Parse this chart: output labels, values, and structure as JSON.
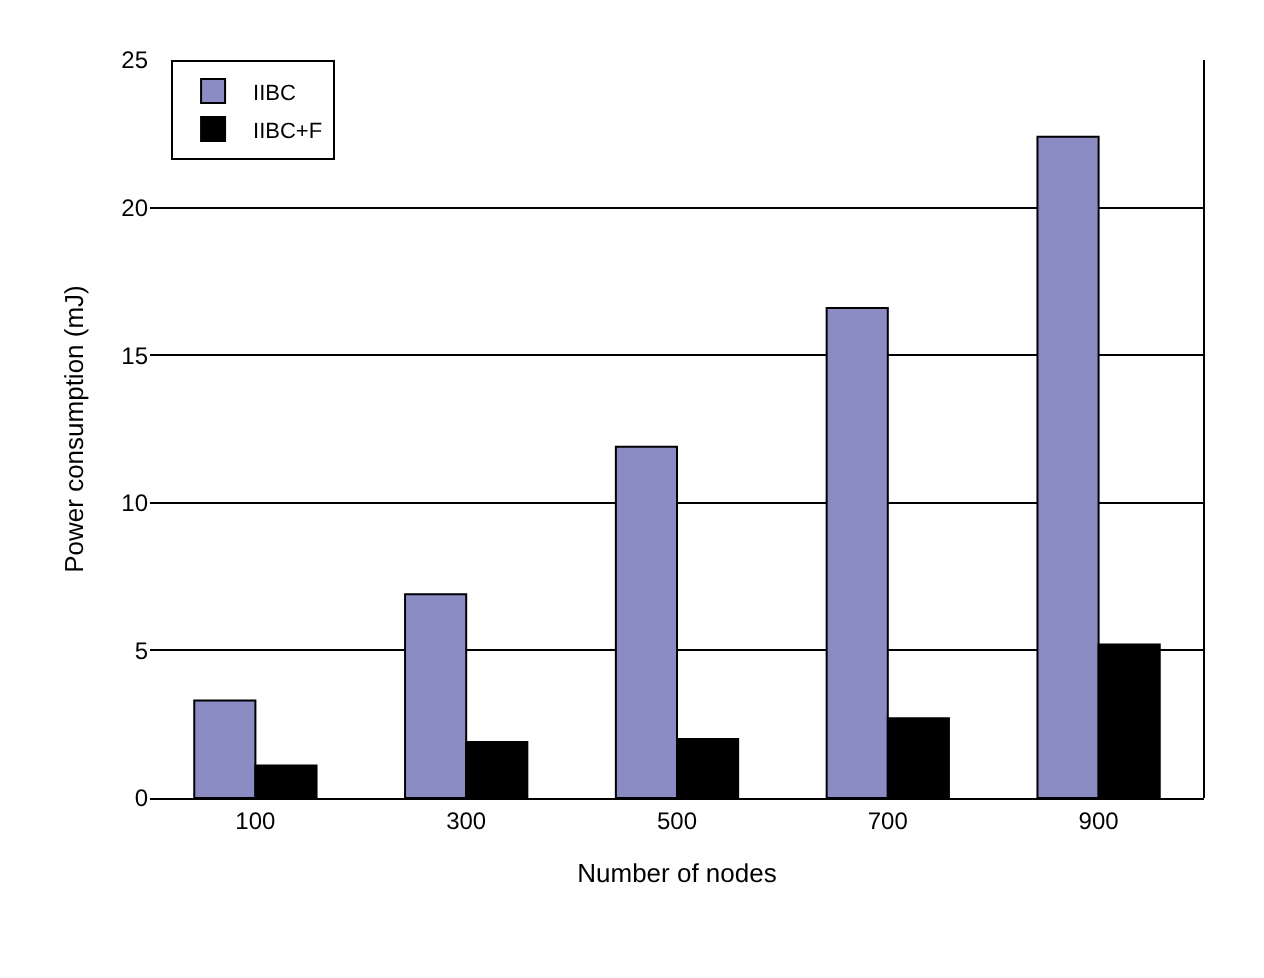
{
  "chart_data": {
    "type": "bar",
    "xlabel": "Number of nodes",
    "ylabel": "Power consumption (mJ)",
    "categories": [
      "100",
      "300",
      "500",
      "700",
      "900"
    ],
    "series": [
      {
        "name": "IIBC",
        "color": "#8c8cc4",
        "values": [
          3.3,
          6.9,
          11.9,
          16.6,
          22.4
        ]
      },
      {
        "name": "IIBC+F",
        "color": "#000000",
        "values": [
          1.1,
          1.9,
          2.0,
          2.7,
          5.2
        ]
      }
    ],
    "ylim": [
      0,
      25
    ],
    "yticks": [
      0,
      5,
      10,
      15,
      20,
      25
    ],
    "grid": "y",
    "legend": "top left"
  }
}
